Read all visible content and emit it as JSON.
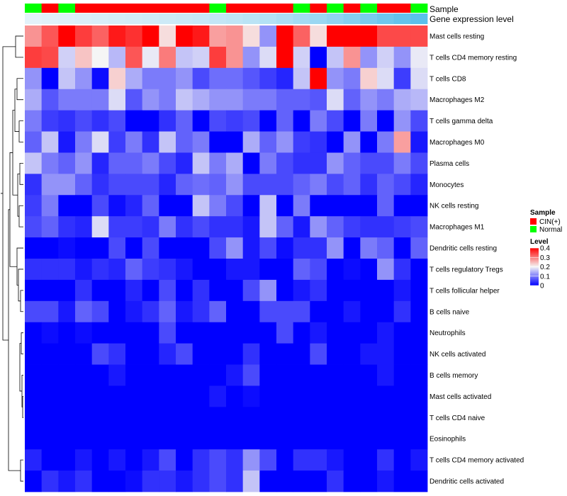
{
  "chart_data": {
    "type": "heatmap",
    "annotations": {
      "sample_label": "Sample",
      "expression_label": "Gene expression level",
      "sample_groups": [
        "N",
        "C",
        "N",
        "C",
        "C",
        "C",
        "C",
        "C",
        "C",
        "C",
        "C",
        "N",
        "C",
        "C",
        "C",
        "C",
        "N",
        "C",
        "N",
        "C",
        "N",
        "C",
        "C",
        "N"
      ],
      "expression_levels": [
        0.02,
        0.04,
        0.06,
        0.08,
        0.1,
        0.12,
        0.14,
        0.16,
        0.18,
        0.2,
        0.22,
        0.25,
        0.28,
        0.32,
        0.36,
        0.42,
        0.48,
        0.55,
        0.62,
        0.7,
        0.78,
        0.86,
        0.94,
        1.0
      ]
    },
    "rows": [
      "Mast cells resting",
      "T cells CD4 memory resting",
      "T cells CD8",
      "Macrophages M2",
      "T cells gamma delta",
      "Macrophages M0",
      "Plasma cells",
      "Monocytes",
      "NK cells resting",
      "Macrophages M1",
      "Dendritic cells resting",
      "T cells regulatory  Tregs",
      "T cells follicular helper",
      "B cells naive",
      "Neutrophils",
      "NK cells activated",
      "B cells memory",
      "Mast cells activated",
      "T cells CD4 naive",
      "Eosinophils",
      "T cells CD4 memory activated",
      "Dendritic cells activated"
    ],
    "values": [
      [
        0.28,
        0.33,
        0.4,
        0.35,
        0.32,
        0.38,
        0.36,
        0.4,
        0.22,
        0.4,
        0.38,
        0.27,
        0.28,
        0.22,
        0.12,
        0.4,
        0.32,
        0.22,
        0.4,
        0.4,
        0.4,
        0.34,
        0.34,
        0.34
      ],
      [
        0.35,
        0.34,
        0.17,
        0.24,
        0.2,
        0.15,
        0.33,
        0.19,
        0.3,
        0.16,
        0.17,
        0.35,
        0.28,
        0.12,
        0.18,
        0.4,
        0.17,
        0.0,
        0.16,
        0.28,
        0.12,
        0.17,
        0.12,
        0.19
      ],
      [
        0.12,
        0.0,
        0.16,
        0.12,
        0.01,
        0.23,
        0.14,
        0.1,
        0.1,
        0.12,
        0.06,
        0.09,
        0.09,
        0.07,
        0.05,
        0.03,
        0.16,
        0.4,
        0.12,
        0.1,
        0.23,
        0.18,
        0.05,
        0.18
      ],
      [
        0.14,
        0.07,
        0.1,
        0.1,
        0.1,
        0.18,
        0.07,
        0.12,
        0.1,
        0.16,
        0.14,
        0.12,
        0.12,
        0.1,
        0.1,
        0.08,
        0.08,
        0.07,
        0.18,
        0.08,
        0.12,
        0.1,
        0.14,
        0.15
      ],
      [
        0.1,
        0.05,
        0.04,
        0.06,
        0.04,
        0.06,
        0.0,
        0.0,
        0.04,
        0.08,
        0.0,
        0.06,
        0.05,
        0.06,
        0.0,
        0.08,
        0.0,
        0.1,
        0.06,
        0.0,
        0.1,
        0.0,
        0.12,
        0.06
      ],
      [
        0.08,
        0.16,
        0.02,
        0.1,
        0.18,
        0.05,
        0.1,
        0.04,
        0.16,
        0.08,
        0.1,
        0.0,
        0.0,
        0.14,
        0.08,
        0.12,
        0.05,
        0.04,
        0.0,
        0.12,
        0.0,
        0.1,
        0.27,
        0.02
      ],
      [
        0.16,
        0.1,
        0.08,
        0.12,
        0.03,
        0.08,
        0.08,
        0.1,
        0.06,
        0.03,
        0.16,
        0.1,
        0.14,
        0.0,
        0.1,
        0.06,
        0.04,
        0.04,
        0.12,
        0.08,
        0.06,
        0.06,
        0.1,
        0.06
      ],
      [
        0.04,
        0.12,
        0.12,
        0.08,
        0.04,
        0.06,
        0.06,
        0.06,
        0.03,
        0.08,
        0.09,
        0.08,
        0.12,
        0.06,
        0.06,
        0.06,
        0.08,
        0.1,
        0.06,
        0.08,
        0.04,
        0.08,
        0.06,
        0.03
      ],
      [
        0.05,
        0.1,
        0.0,
        0.0,
        0.06,
        0.01,
        0.03,
        0.08,
        0.0,
        0.0,
        0.16,
        0.1,
        0.06,
        0.0,
        0.16,
        0.0,
        0.1,
        0.0,
        0.0,
        0.0,
        0.0,
        0.08,
        0.0,
        0.0
      ],
      [
        0.06,
        0.08,
        0.04,
        0.03,
        0.18,
        0.05,
        0.05,
        0.04,
        0.1,
        0.04,
        0.06,
        0.04,
        0.04,
        0.02,
        0.16,
        0.08,
        0.02,
        0.12,
        0.08,
        0.05,
        0.04,
        0.04,
        0.05,
        0.06
      ],
      [
        0.0,
        0.0,
        0.01,
        0.0,
        0.0,
        0.06,
        0.0,
        0.06,
        0.0,
        0.0,
        0.0,
        0.06,
        0.12,
        0.02,
        0.06,
        0.01,
        0.04,
        0.04,
        0.12,
        0.0,
        0.1,
        0.08,
        0.0,
        0.08
      ],
      [
        0.04,
        0.04,
        0.04,
        0.02,
        0.04,
        0.03,
        0.08,
        0.05,
        0.04,
        0.02,
        0.0,
        0.0,
        0.02,
        0.02,
        0.0,
        0.0,
        0.08,
        0.06,
        0.0,
        0.01,
        0.0,
        0.12,
        0.04,
        0.0
      ],
      [
        0.0,
        0.0,
        0.0,
        0.04,
        0.0,
        0.0,
        0.03,
        0.0,
        0.06,
        0.0,
        0.04,
        0.0,
        0.0,
        0.06,
        0.12,
        0.0,
        0.02,
        0.04,
        0.0,
        0.0,
        0.0,
        0.0,
        0.02,
        0.0
      ],
      [
        0.06,
        0.06,
        0.02,
        0.08,
        0.06,
        0.0,
        0.02,
        0.04,
        0.08,
        0.02,
        0.04,
        0.08,
        0.0,
        0.0,
        0.06,
        0.06,
        0.06,
        0.0,
        0.0,
        0.02,
        0.0,
        0.0,
        0.04,
        0.0
      ],
      [
        0.0,
        0.01,
        0.0,
        0.01,
        0.0,
        0.0,
        0.0,
        0.0,
        0.06,
        0.0,
        0.0,
        0.0,
        0.0,
        0.0,
        0.0,
        0.06,
        0.0,
        0.02,
        0.0,
        0.0,
        0.0,
        0.02,
        0.0,
        0.0
      ],
      [
        0.0,
        0.0,
        0.0,
        0.0,
        0.06,
        0.04,
        0.0,
        0.0,
        0.03,
        0.06,
        0.0,
        0.0,
        0.0,
        0.04,
        0.0,
        0.0,
        0.0,
        0.06,
        0.0,
        0.0,
        0.02,
        0.02,
        0.0,
        0.0
      ],
      [
        0.0,
        0.0,
        0.0,
        0.0,
        0.0,
        0.02,
        0.0,
        0.0,
        0.0,
        0.0,
        0.0,
        0.0,
        0.02,
        0.06,
        0.0,
        0.0,
        0.0,
        0.0,
        0.0,
        0.0,
        0.0,
        0.02,
        0.0,
        0.0
      ],
      [
        0.0,
        0.0,
        0.0,
        0.0,
        0.0,
        0.0,
        0.0,
        0.0,
        0.0,
        0.0,
        0.0,
        0.02,
        0.0,
        0.01,
        0.0,
        0.0,
        0.0,
        0.0,
        0.0,
        0.0,
        0.0,
        0.0,
        0.0,
        0.0
      ],
      [
        0.0,
        0.0,
        0.0,
        0.0,
        0.0,
        0.0,
        0.0,
        0.0,
        0.0,
        0.0,
        0.0,
        0.0,
        0.0,
        0.0,
        0.0,
        0.0,
        0.0,
        0.0,
        0.0,
        0.0,
        0.0,
        0.0,
        0.0,
        0.0
      ],
      [
        0.0,
        0.0,
        0.0,
        0.0,
        0.0,
        0.0,
        0.0,
        0.0,
        0.0,
        0.0,
        0.0,
        0.0,
        0.0,
        0.0,
        0.0,
        0.0,
        0.0,
        0.0,
        0.0,
        0.0,
        0.0,
        0.0,
        0.0,
        0.0
      ],
      [
        0.03,
        0.0,
        0.0,
        0.02,
        0.0,
        0.02,
        0.0,
        0.02,
        0.06,
        0.0,
        0.04,
        0.06,
        0.04,
        0.12,
        0.06,
        0.0,
        0.04,
        0.04,
        0.02,
        0.0,
        0.0,
        0.04,
        0.0,
        0.02
      ],
      [
        0.0,
        0.04,
        0.02,
        0.04,
        0.0,
        0.0,
        0.01,
        0.04,
        0.04,
        0.02,
        0.04,
        0.06,
        0.04,
        0.16,
        0.0,
        0.0,
        0.0,
        0.0,
        0.04,
        0.0,
        0.0,
        0.02,
        0.0,
        0.0
      ]
    ],
    "color_scale": {
      "min": 0,
      "mid": 0.2,
      "max": 0.4,
      "low": "#0000FF",
      "mid_color": "#F5F5F5",
      "high": "#FF0000"
    },
    "legend": {
      "sample_title": "Sample",
      "sample_items": [
        {
          "label": "CIN(+)",
          "color": "#FF0000"
        },
        {
          "label": "Normal",
          "color": "#00FF00"
        }
      ],
      "level_title": "Level",
      "level_ticks": [
        "0.4",
        "0.3",
        "0.2",
        "0.1",
        "0"
      ]
    },
    "colors": {
      "group_cin": "#FF0000",
      "group_normal": "#00FF00",
      "expr_low": "#E6F3FA",
      "expr_high": "#5BC0EB",
      "dendro": "#000000"
    }
  }
}
